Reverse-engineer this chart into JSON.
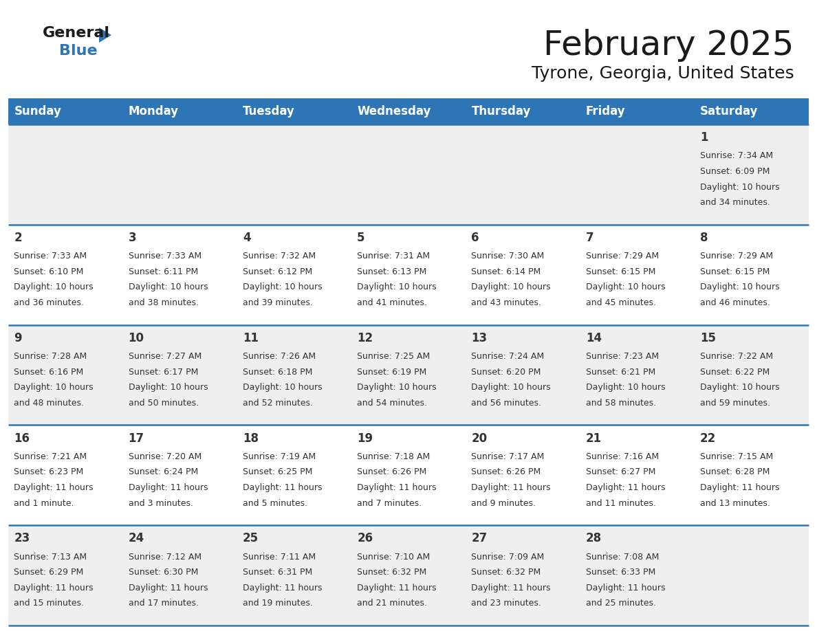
{
  "title": "February 2025",
  "subtitle": "Tyrone, Georgia, United States",
  "header_bg": "#2E75B6",
  "header_text": "#FFFFFF",
  "day_names": [
    "Sunday",
    "Monday",
    "Tuesday",
    "Wednesday",
    "Thursday",
    "Friday",
    "Saturday"
  ],
  "row_bg_light": "#EFEFEF",
  "row_bg_white": "#FFFFFF",
  "cell_border": "#2E75B6",
  "text_color": "#333333",
  "day_number_color": "#333333",
  "calendar_data": [
    [
      null,
      null,
      null,
      null,
      null,
      null,
      {
        "day": 1,
        "sunrise": "7:34 AM",
        "sunset": "6:09 PM",
        "daylight": "10 hours and 34 minutes."
      }
    ],
    [
      {
        "day": 2,
        "sunrise": "7:33 AM",
        "sunset": "6:10 PM",
        "daylight": "10 hours and 36 minutes."
      },
      {
        "day": 3,
        "sunrise": "7:33 AM",
        "sunset": "6:11 PM",
        "daylight": "10 hours and 38 minutes."
      },
      {
        "day": 4,
        "sunrise": "7:32 AM",
        "sunset": "6:12 PM",
        "daylight": "10 hours and 39 minutes."
      },
      {
        "day": 5,
        "sunrise": "7:31 AM",
        "sunset": "6:13 PM",
        "daylight": "10 hours and 41 minutes."
      },
      {
        "day": 6,
        "sunrise": "7:30 AM",
        "sunset": "6:14 PM",
        "daylight": "10 hours and 43 minutes."
      },
      {
        "day": 7,
        "sunrise": "7:29 AM",
        "sunset": "6:15 PM",
        "daylight": "10 hours and 45 minutes."
      },
      {
        "day": 8,
        "sunrise": "7:29 AM",
        "sunset": "6:15 PM",
        "daylight": "10 hours and 46 minutes."
      }
    ],
    [
      {
        "day": 9,
        "sunrise": "7:28 AM",
        "sunset": "6:16 PM",
        "daylight": "10 hours and 48 minutes."
      },
      {
        "day": 10,
        "sunrise": "7:27 AM",
        "sunset": "6:17 PM",
        "daylight": "10 hours and 50 minutes."
      },
      {
        "day": 11,
        "sunrise": "7:26 AM",
        "sunset": "6:18 PM",
        "daylight": "10 hours and 52 minutes."
      },
      {
        "day": 12,
        "sunrise": "7:25 AM",
        "sunset": "6:19 PM",
        "daylight": "10 hours and 54 minutes."
      },
      {
        "day": 13,
        "sunrise": "7:24 AM",
        "sunset": "6:20 PM",
        "daylight": "10 hours and 56 minutes."
      },
      {
        "day": 14,
        "sunrise": "7:23 AM",
        "sunset": "6:21 PM",
        "daylight": "10 hours and 58 minutes."
      },
      {
        "day": 15,
        "sunrise": "7:22 AM",
        "sunset": "6:22 PM",
        "daylight": "10 hours and 59 minutes."
      }
    ],
    [
      {
        "day": 16,
        "sunrise": "7:21 AM",
        "sunset": "6:23 PM",
        "daylight": "11 hours and 1 minute."
      },
      {
        "day": 17,
        "sunrise": "7:20 AM",
        "sunset": "6:24 PM",
        "daylight": "11 hours and 3 minutes."
      },
      {
        "day": 18,
        "sunrise": "7:19 AM",
        "sunset": "6:25 PM",
        "daylight": "11 hours and 5 minutes."
      },
      {
        "day": 19,
        "sunrise": "7:18 AM",
        "sunset": "6:26 PM",
        "daylight": "11 hours and 7 minutes."
      },
      {
        "day": 20,
        "sunrise": "7:17 AM",
        "sunset": "6:26 PM",
        "daylight": "11 hours and 9 minutes."
      },
      {
        "day": 21,
        "sunrise": "7:16 AM",
        "sunset": "6:27 PM",
        "daylight": "11 hours and 11 minutes."
      },
      {
        "day": 22,
        "sunrise": "7:15 AM",
        "sunset": "6:28 PM",
        "daylight": "11 hours and 13 minutes."
      }
    ],
    [
      {
        "day": 23,
        "sunrise": "7:13 AM",
        "sunset": "6:29 PM",
        "daylight": "11 hours and 15 minutes."
      },
      {
        "day": 24,
        "sunrise": "7:12 AM",
        "sunset": "6:30 PM",
        "daylight": "11 hours and 17 minutes."
      },
      {
        "day": 25,
        "sunrise": "7:11 AM",
        "sunset": "6:31 PM",
        "daylight": "11 hours and 19 minutes."
      },
      {
        "day": 26,
        "sunrise": "7:10 AM",
        "sunset": "6:32 PM",
        "daylight": "11 hours and 21 minutes."
      },
      {
        "day": 27,
        "sunrise": "7:09 AM",
        "sunset": "6:32 PM",
        "daylight": "11 hours and 23 minutes."
      },
      {
        "day": 28,
        "sunrise": "7:08 AM",
        "sunset": "6:33 PM",
        "daylight": "11 hours and 25 minutes."
      },
      null
    ]
  ]
}
